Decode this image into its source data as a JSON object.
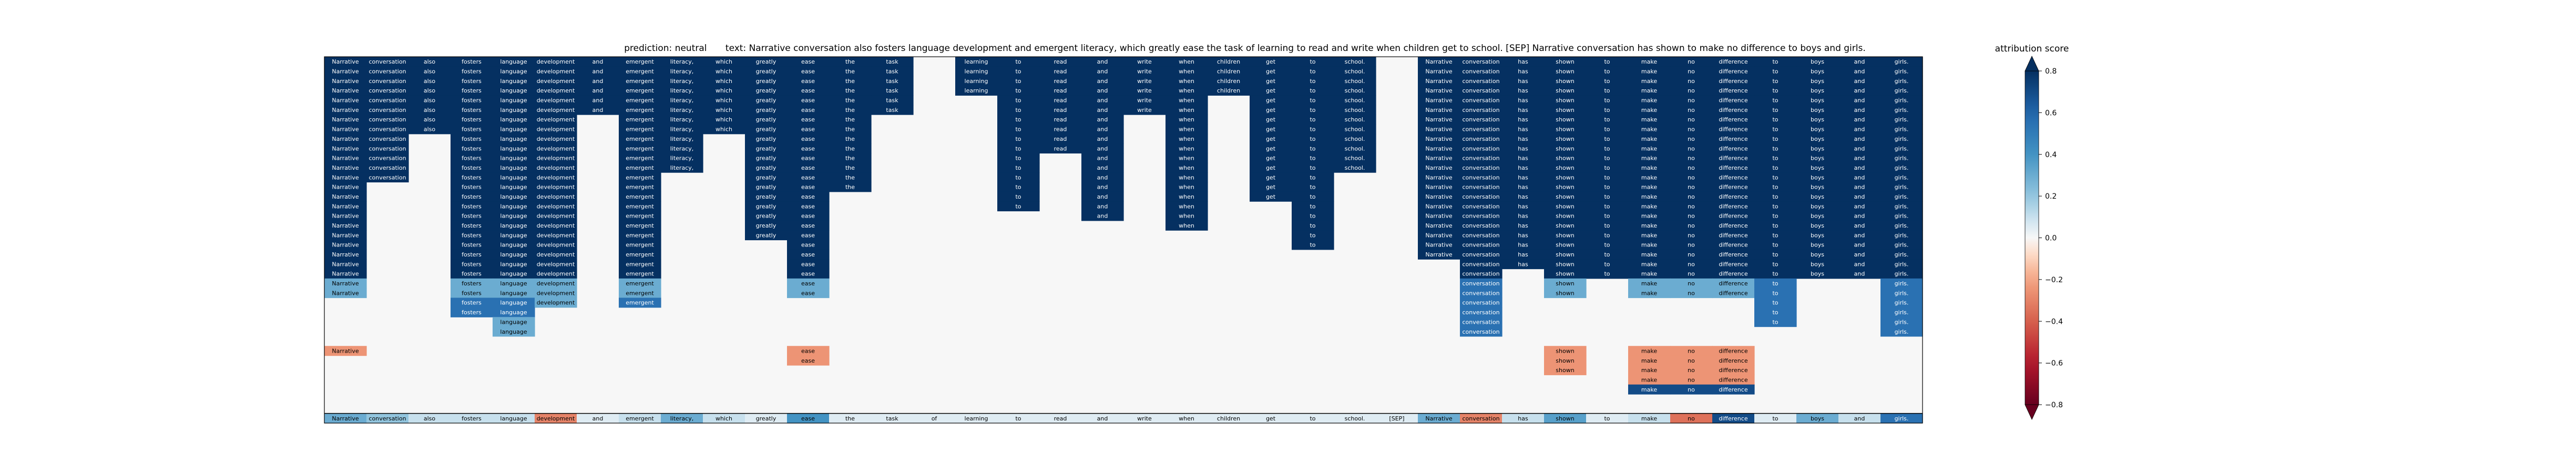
{
  "header": {
    "prediction_label": "prediction:",
    "prediction_value": "neutral",
    "text_label": "text:",
    "text_value": "Narrative conversation also fosters language development and emergent literacy, which greatly ease the task of learning to read and write when children get to school. [SEP] Narrative conversation has shown to make no difference to boys and girls."
  },
  "chart_data": {
    "type": "heatmap",
    "tokens": [
      "Narrative",
      "conversation",
      "also",
      "fosters",
      "language",
      "development",
      "and",
      "emergent",
      "literacy,",
      "which",
      "greatly",
      "ease",
      "the",
      "task",
      "of",
      "learning",
      "to",
      "read",
      "and",
      "write",
      "when",
      "children",
      "get",
      "to",
      "school.",
      "[SEP]",
      "Narrative",
      "conversation",
      "has",
      "shown",
      "to",
      "make",
      "no",
      "difference",
      "to",
      "boys",
      "and",
      "girls."
    ],
    "colorbar": {
      "title": "attribution score",
      "range": [
        -0.8,
        0.8
      ],
      "ticks": [
        -0.8,
        -0.6,
        -0.4,
        -0.2,
        0.0,
        0.2,
        0.4,
        0.6,
        0.8
      ],
      "tick_labels": [
        "−0.8",
        "−0.6",
        "−0.4",
        "−0.2",
        "0.0",
        "0.2",
        "0.4",
        "0.6",
        "0.8"
      ]
    },
    "n_rows": 38,
    "summary_row": [
      0.3,
      0.2,
      0.1,
      0.1,
      0.1,
      -0.3,
      0.05,
      0.1,
      0.3,
      0.1,
      0.05,
      0.4,
      0.05,
      0.05,
      0.05,
      0.05,
      0.05,
      0.05,
      0.05,
      0.05,
      0.05,
      0.05,
      0.05,
      0.05,
      0.05,
      0.05,
      0.3,
      -0.3,
      0.1,
      0.35,
      0.05,
      0.1,
      -0.35,
      0.7,
      0.05,
      0.3,
      0.1,
      0.55
    ],
    "blocks": [
      {
        "cols": [
          0,
          0
        ],
        "rows": [
          0,
          22
        ],
        "value": 0.85
      },
      {
        "cols": [
          1,
          1
        ],
        "rows": [
          0,
          12
        ],
        "value": 0.85
      },
      {
        "cols": [
          2,
          2
        ],
        "rows": [
          0,
          7
        ],
        "value": 0.85
      },
      {
        "cols": [
          3,
          5
        ],
        "rows": [
          0,
          22
        ],
        "value": 0.85
      },
      {
        "cols": [
          6,
          6
        ],
        "rows": [
          0,
          5
        ],
        "value": 0.85
      },
      {
        "cols": [
          7,
          7
        ],
        "rows": [
          0,
          22
        ],
        "value": 0.85
      },
      {
        "cols": [
          8,
          8
        ],
        "rows": [
          0,
          11
        ],
        "value": 0.85
      },
      {
        "cols": [
          9,
          9
        ],
        "rows": [
          0,
          7
        ],
        "value": 0.85
      },
      {
        "cols": [
          10,
          10
        ],
        "rows": [
          0,
          18
        ],
        "value": 0.85
      },
      {
        "cols": [
          11,
          11
        ],
        "rows": [
          0,
          22
        ],
        "value": 0.85
      },
      {
        "cols": [
          12,
          12
        ],
        "rows": [
          0,
          13
        ],
        "value": 0.85
      },
      {
        "cols": [
          13,
          13
        ],
        "rows": [
          0,
          5
        ],
        "value": 0.85
      },
      {
        "cols": [
          15,
          15
        ],
        "rows": [
          0,
          3
        ],
        "value": 0.85
      },
      {
        "cols": [
          16,
          16
        ],
        "rows": [
          0,
          15
        ],
        "value": 0.85
      },
      {
        "cols": [
          17,
          17
        ],
        "rows": [
          0,
          9
        ],
        "value": 0.85
      },
      {
        "cols": [
          18,
          18
        ],
        "rows": [
          0,
          16
        ],
        "value": 0.85
      },
      {
        "cols": [
          19,
          19
        ],
        "rows": [
          0,
          5
        ],
        "value": 0.85
      },
      {
        "cols": [
          20,
          20
        ],
        "rows": [
          0,
          17
        ],
        "value": 0.85
      },
      {
        "cols": [
          21,
          21
        ],
        "rows": [
          0,
          3
        ],
        "value": 0.85
      },
      {
        "cols": [
          22,
          22
        ],
        "rows": [
          0,
          14
        ],
        "value": 0.85
      },
      {
        "cols": [
          23,
          23
        ],
        "rows": [
          0,
          19
        ],
        "value": 0.85
      },
      {
        "cols": [
          24,
          24
        ],
        "rows": [
          0,
          11
        ],
        "value": 0.85
      },
      {
        "cols": [
          26,
          26
        ],
        "rows": [
          0,
          20
        ],
        "value": 0.85
      },
      {
        "cols": [
          27,
          27
        ],
        "rows": [
          0,
          22
        ],
        "value": 0.85
      },
      {
        "cols": [
          28,
          28
        ],
        "rows": [
          0,
          21
        ],
        "value": 0.85
      },
      {
        "cols": [
          29,
          29
        ],
        "rows": [
          0,
          22
        ],
        "value": 0.85
      },
      {
        "cols": [
          30,
          30
        ],
        "rows": [
          0,
          22
        ],
        "value": 0.85
      },
      {
        "cols": [
          31,
          36
        ],
        "rows": [
          0,
          22
        ],
        "value": 0.85
      },
      {
        "cols": [
          37,
          37
        ],
        "rows": [
          0,
          22
        ],
        "value": 0.85
      },
      {
        "cols": [
          0,
          0
        ],
        "rows": [
          23,
          24
        ],
        "value": 0.3
      },
      {
        "cols": [
          3,
          5
        ],
        "rows": [
          23,
          24
        ],
        "value": 0.3
      },
      {
        "cols": [
          7,
          7
        ],
        "rows": [
          23,
          24
        ],
        "value": 0.3
      },
      {
        "cols": [
          11,
          11
        ],
        "rows": [
          23,
          24
        ],
        "value": 0.3
      },
      {
        "cols": [
          5,
          5
        ],
        "rows": [
          25,
          25
        ],
        "value": 0.3
      },
      {
        "cols": [
          3,
          4
        ],
        "rows": [
          25,
          26
        ],
        "value": 0.55
      },
      {
        "cols": [
          7,
          7
        ],
        "rows": [
          25,
          25
        ],
        "value": 0.55
      },
      {
        "cols": [
          4,
          4
        ],
        "rows": [
          27,
          28
        ],
        "value": 0.3
      },
      {
        "cols": [
          27,
          27
        ],
        "rows": [
          23,
          28
        ],
        "value": 0.55
      },
      {
        "cols": [
          29,
          29
        ],
        "rows": [
          23,
          24
        ],
        "value": 0.3
      },
      {
        "cols": [
          31,
          33
        ],
        "rows": [
          23,
          24
        ],
        "value": 0.3
      },
      {
        "cols": [
          34,
          34
        ],
        "rows": [
          23,
          27
        ],
        "value": 0.55
      },
      {
        "cols": [
          37,
          37
        ],
        "rows": [
          23,
          28
        ],
        "value": 0.55
      },
      {
        "cols": [
          0,
          0
        ],
        "rows": [
          30,
          30
        ],
        "value": -0.25
      },
      {
        "cols": [
          11,
          11
        ],
        "rows": [
          30,
          31
        ],
        "value": -0.25
      },
      {
        "cols": [
          29,
          29
        ],
        "rows": [
          30,
          32
        ],
        "value": -0.25
      },
      {
        "cols": [
          31,
          33
        ],
        "rows": [
          30,
          33
        ],
        "value": -0.25
      },
      {
        "cols": [
          31,
          33
        ],
        "rows": [
          34,
          34
        ],
        "value": 0.7
      }
    ]
  }
}
